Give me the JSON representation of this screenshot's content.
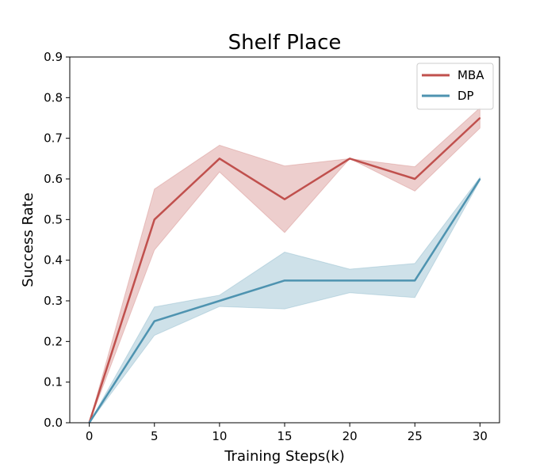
{
  "chart_data": {
    "type": "line",
    "title": "Shelf Place",
    "xlabel": "Training Steps(k)",
    "ylabel": "Success Rate",
    "x": [
      0,
      5,
      10,
      15,
      20,
      25,
      30
    ],
    "xlim": [
      -1.5,
      31.5
    ],
    "ylim": [
      0,
      0.9
    ],
    "xticks": [
      0,
      5,
      10,
      15,
      20,
      25,
      30
    ],
    "yticks": [
      0.0,
      0.1,
      0.2,
      0.3,
      0.4,
      0.5,
      0.6,
      0.7,
      0.8,
      0.9
    ],
    "xtick_labels": [
      "0",
      "5",
      "10",
      "15",
      "20",
      "25",
      "30"
    ],
    "ytick_labels": [
      "0.0",
      "0.1",
      "0.2",
      "0.3",
      "0.4",
      "0.5",
      "0.6",
      "0.7",
      "0.8",
      "0.9"
    ],
    "grid": false,
    "legend_position": "top-right",
    "series": [
      {
        "name": "MBA",
        "color": "#c0504d",
        "values": [
          0.0,
          0.5,
          0.65,
          0.55,
          0.65,
          0.6,
          0.75
        ],
        "lower": [
          0.0,
          0.425,
          0.617,
          0.468,
          0.65,
          0.57,
          0.725
        ],
        "upper": [
          0.0,
          0.575,
          0.683,
          0.632,
          0.65,
          0.63,
          0.775
        ]
      },
      {
        "name": "DP",
        "color": "#4e93b0",
        "values": [
          0.0,
          0.25,
          0.3,
          0.35,
          0.35,
          0.35,
          0.6
        ],
        "lower": [
          0.0,
          0.215,
          0.286,
          0.28,
          0.32,
          0.308,
          0.596
        ],
        "upper": [
          0.0,
          0.285,
          0.314,
          0.42,
          0.378,
          0.392,
          0.604
        ]
      }
    ]
  }
}
